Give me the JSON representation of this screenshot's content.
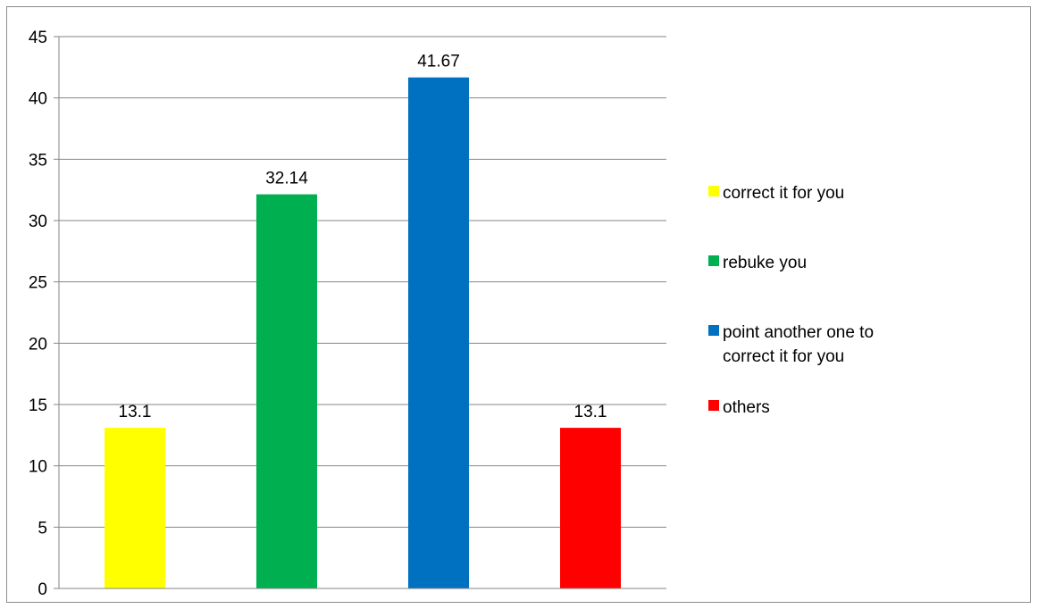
{
  "chart_data": {
    "type": "bar",
    "categories": [
      "correct it for you",
      "rebuke you",
      "point another one to correct it for you",
      "others"
    ],
    "values": [
      13.1,
      32.14,
      41.67,
      13.1
    ],
    "data_labels": [
      "13.1",
      "32.14",
      "41.67",
      "13.1"
    ],
    "colors": [
      "#ffff00",
      "#00b050",
      "#0070c0",
      "#ff0000"
    ],
    "ylim": [
      0,
      45
    ],
    "yticks": [
      0,
      5,
      10,
      15,
      20,
      25,
      30,
      35,
      40,
      45
    ],
    "grid": true,
    "legend": {
      "position": "right",
      "entries": [
        "correct it for you",
        "rebuke you",
        "point another one to correct it for you",
        "others"
      ]
    }
  }
}
